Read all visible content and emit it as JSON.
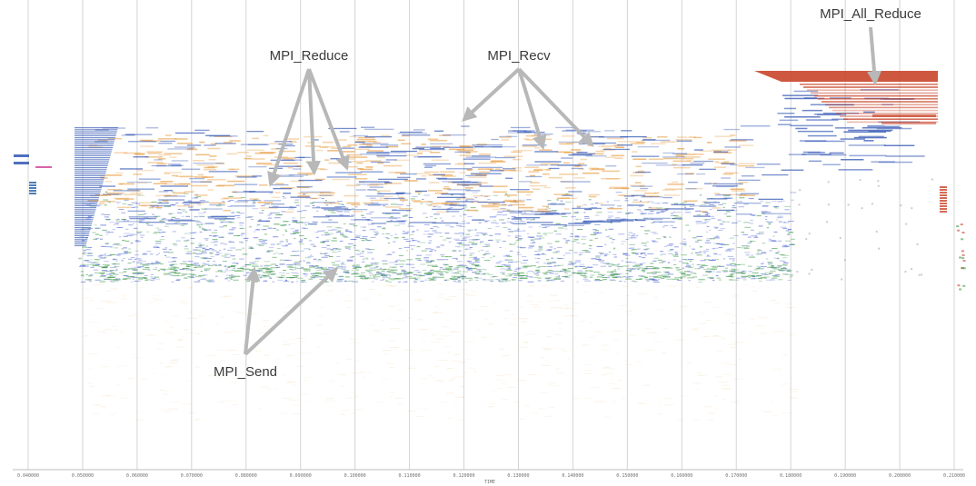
{
  "chart_data": {
    "type": "scatter",
    "xlabel": "TIME",
    "xlim": [
      0.04,
      0.21
    ],
    "x_ticks": [
      {
        "value": 0.04,
        "label": "0.040000"
      },
      {
        "value": 0.05,
        "label": "0.050000"
      },
      {
        "value": 0.06,
        "label": "0.060000"
      },
      {
        "value": 0.07,
        "label": "0.070000"
      },
      {
        "value": 0.08,
        "label": "0.080000"
      },
      {
        "value": 0.09,
        "label": "0.090000"
      },
      {
        "value": 0.1,
        "label": "0.100000"
      },
      {
        "value": 0.11,
        "label": "0.110000"
      },
      {
        "value": 0.12,
        "label": "0.120000"
      },
      {
        "value": 0.13,
        "label": "0.130000"
      },
      {
        "value": 0.14,
        "label": "0.140000"
      },
      {
        "value": 0.15,
        "label": "0.150000"
      },
      {
        "value": 0.16,
        "label": "0.160000"
      },
      {
        "value": 0.17,
        "label": "0.170000"
      },
      {
        "value": 0.18,
        "label": "0.180000"
      },
      {
        "value": 0.19,
        "label": "0.190000"
      },
      {
        "value": 0.2,
        "label": "0.200000"
      },
      {
        "value": 0.21,
        "label": "0.210000"
      }
    ],
    "grid": true,
    "annotations": [
      {
        "label": "MPI_All_Reduce",
        "targets": [
          [
            0.1955,
            0.84
          ]
        ]
      },
      {
        "label": "MPI_Reduce",
        "targets": [
          [
            0.0845,
            0.62
          ],
          [
            0.0925,
            0.645
          ],
          [
            0.0985,
            0.655
          ]
        ]
      },
      {
        "label": "MPI_Recv",
        "targets": [
          [
            0.12,
            0.76
          ],
          [
            0.1345,
            0.7
          ],
          [
            0.1435,
            0.705
          ]
        ]
      },
      {
        "label": "MPI_Send",
        "targets": [
          [
            0.0815,
            0.435
          ],
          [
            0.0965,
            0.435
          ]
        ]
      }
    ],
    "colors": {
      "send": "#5a6fd6",
      "send_green": "#3f9a4a",
      "reduce": "#e8a14a",
      "recv": "#3d5fb8",
      "all_reduce": "#c9452a",
      "gridline": "#d4d4d4",
      "arrow": "#b8b8b8"
    }
  }
}
